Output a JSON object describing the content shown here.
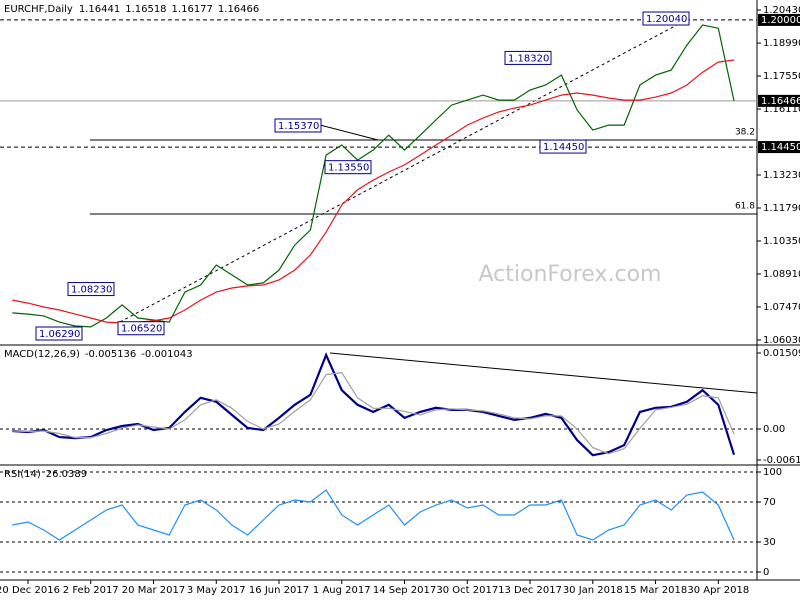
{
  "chart_data": [
    {
      "type": "line",
      "title": "EURCHF,Daily",
      "ohlc": [
        1.16441,
        1.16518,
        1.16177,
        1.16466
      ],
      "categories": [
        null,
        "20 Dec 2016",
        null,
        null,
        null,
        "2 Feb 2017",
        null,
        null,
        null,
        "20 Mar 2017",
        null,
        null,
        null,
        "3 May 2017",
        null,
        null,
        null,
        "16 Jun 2017",
        null,
        null,
        null,
        "1 Aug 2017",
        null,
        null,
        null,
        "14 Sep 2017",
        null,
        null,
        null,
        "30 Oct 2017",
        null,
        null,
        null,
        "13 Dec 2017",
        null,
        null,
        null,
        "30 Jan 2018",
        null,
        null,
        null,
        "15 Mar 2018",
        null,
        null,
        null,
        "30 Apr 2018",
        null
      ],
      "series": [
        {
          "color": "#006400",
          "values": [
            1.0721,
            1.0716,
            1.0708,
            1.0681,
            1.0664,
            1.066,
            1.0699,
            1.0756,
            1.0699,
            1.069,
            1.0681,
            1.0812,
            1.0843,
            1.093,
            1.0887,
            1.0843,
            1.0852,
            1.0908,
            1.1017,
            1.1083,
            1.141,
            1.1454,
            1.1388,
            1.1432,
            1.1497,
            1.1432,
            1.1497,
            1.1563,
            1.1628,
            1.165,
            1.1672,
            1.165,
            1.165,
            1.1694,
            1.1716,
            1.1759,
            1.1607,
            1.1519,
            1.1541,
            1.1541,
            1.1716,
            1.1759,
            1.1781,
            1.189,
            1.1978,
            1.1964,
            1.1647
          ]
        },
        {
          "color": "#e8141e",
          "values": [
            1.0777,
            1.0764,
            1.0747,
            1.0734,
            1.0716,
            1.0699,
            1.0681,
            1.0677,
            1.0681,
            1.0686,
            1.0699,
            1.0734,
            1.0777,
            1.0812,
            1.083,
            1.0839,
            1.0843,
            1.0865,
            1.0908,
            1.0974,
            1.1074,
            1.1192,
            1.1258,
            1.1301,
            1.1336,
            1.1367,
            1.141,
            1.1454,
            1.1497,
            1.1541,
            1.1572,
            1.1598,
            1.1615,
            1.1628,
            1.165,
            1.1672,
            1.1681,
            1.1672,
            1.1659,
            1.165,
            1.165,
            1.1663,
            1.1681,
            1.1716,
            1.1772,
            1.1816,
            1.1825
          ]
        }
      ],
      "ylim": [
        1.0581,
        1.2087
      ],
      "yticks": [
        {
          "value": 1.2043,
          "label": "1.20430"
        },
        {
          "value": 1.1899,
          "label": "1.18990"
        },
        {
          "value": 1.1755,
          "label": "1.17550"
        },
        {
          "value": 1.1611,
          "label": "1.16110"
        },
        {
          "value": 1.1323,
          "label": "1.13230"
        },
        {
          "value": 1.1179,
          "label": "1.11790"
        },
        {
          "value": 1.1035,
          "label": "1.10350"
        },
        {
          "value": 1.0891,
          "label": "1.08910"
        },
        {
          "value": 1.0747,
          "label": "1.07470"
        },
        {
          "value": 1.0603,
          "label": "1.06030"
        }
      ],
      "levels": [
        {
          "value": 1.2,
          "label": "1.20000"
        },
        1.16466,
        {
          "value": 1.1445,
          "label": "1.14450"
        }
      ],
      "fib": [
        {
          "value": 1.1476,
          "label": "38.2"
        },
        {
          "value": 1.1153,
          "label": "61.8"
        }
      ],
      "annotations": [
        {
          "value": 1.2004,
          "label": "1.20040"
        },
        {
          "value": 1.1832,
          "label": "1.18320"
        },
        {
          "value": 1.1537,
          "label": "1.15370"
        },
        {
          "value": 1.1355,
          "label": "1.13550"
        },
        {
          "value": 1.1445,
          "label": "1.14450"
        },
        {
          "value": 1.0823,
          "label": "1.08230"
        },
        {
          "value": 1.0629,
          "label": "1.06290"
        },
        {
          "value": 1.0652,
          "label": "1.06520"
        }
      ],
      "watermark": "ActionForex.com"
    },
    {
      "type": "line",
      "title": "MACD(12,26,9)",
      "readout": [
        -0.005136,
        -0.001043
      ],
      "series": [
        {
          "color": "#00008b",
          "values": [
            -0.0004,
            -0.0006,
            -0.0002,
            -0.0016,
            -0.0018,
            -0.0016,
            -0.0002,
            0.0006,
            0.001,
            -0.0002,
            0.0002,
            0.0034,
            0.0062,
            0.0054,
            0.0028,
            0.0002,
            -0.0002,
            0.0022,
            0.0048,
            0.0068,
            0.0147,
            0.0077,
            0.0048,
            0.0034,
            0.0048,
            0.0022,
            0.0034,
            0.0042,
            0.0038,
            0.0038,
            0.0034,
            0.0026,
            0.0018,
            0.0022,
            0.003,
            0.0022,
            -0.0022,
            -0.0052,
            -0.0046,
            -0.0032,
            0.0034,
            0.0042,
            0.0044,
            0.0054,
            0.0077,
            0.0048,
            -0.0051
          ]
        },
        {
          "color": "#a0a0a0",
          "values": [
            -0.0004,
            -0.0005,
            -0.0004,
            -0.0009,
            -0.0017,
            -0.0017,
            -0.0009,
            0.0002,
            0.0008,
            0.0004,
            0.0,
            0.0018,
            0.0048,
            0.0058,
            0.0041,
            0.0015,
            0.0,
            0.001,
            0.0035,
            0.0058,
            0.0108,
            0.0112,
            0.0062,
            0.0041,
            0.0041,
            0.0035,
            0.0028,
            0.0038,
            0.004,
            0.0038,
            0.0036,
            0.003,
            0.0022,
            0.002,
            0.0026,
            0.0026,
            0.0,
            -0.0037,
            -0.0049,
            -0.0039,
            0.0001,
            0.0038,
            0.0043,
            0.0049,
            0.0066,
            0.0062,
            -0.001
          ]
        }
      ],
      "ylim": [
        -0.00715,
        0.01668
      ],
      "yticks": [
        0.015092,
        {
          "value": 0,
          "label": "0.00"
        },
        -0.006163
      ]
    },
    {
      "type": "line",
      "title": "RSI(14)",
      "readout": 26.0389,
      "series": [
        {
          "color": "#1e90ff",
          "values": [
            47,
            50,
            42,
            32,
            42,
            52,
            62,
            67,
            47,
            42,
            37,
            67,
            72,
            62,
            47,
            37,
            52,
            67,
            72,
            70,
            82,
            57,
            47,
            57,
            67,
            47,
            60,
            67,
            72,
            64,
            67,
            57,
            57,
            67,
            67,
            72,
            37,
            32,
            42,
            47,
            67,
            72,
            62,
            77,
            80,
            67,
            32
          ]
        }
      ],
      "ylim": [
        -8,
        107
      ],
      "yticks": [
        100,
        70,
        30,
        0
      ]
    }
  ]
}
